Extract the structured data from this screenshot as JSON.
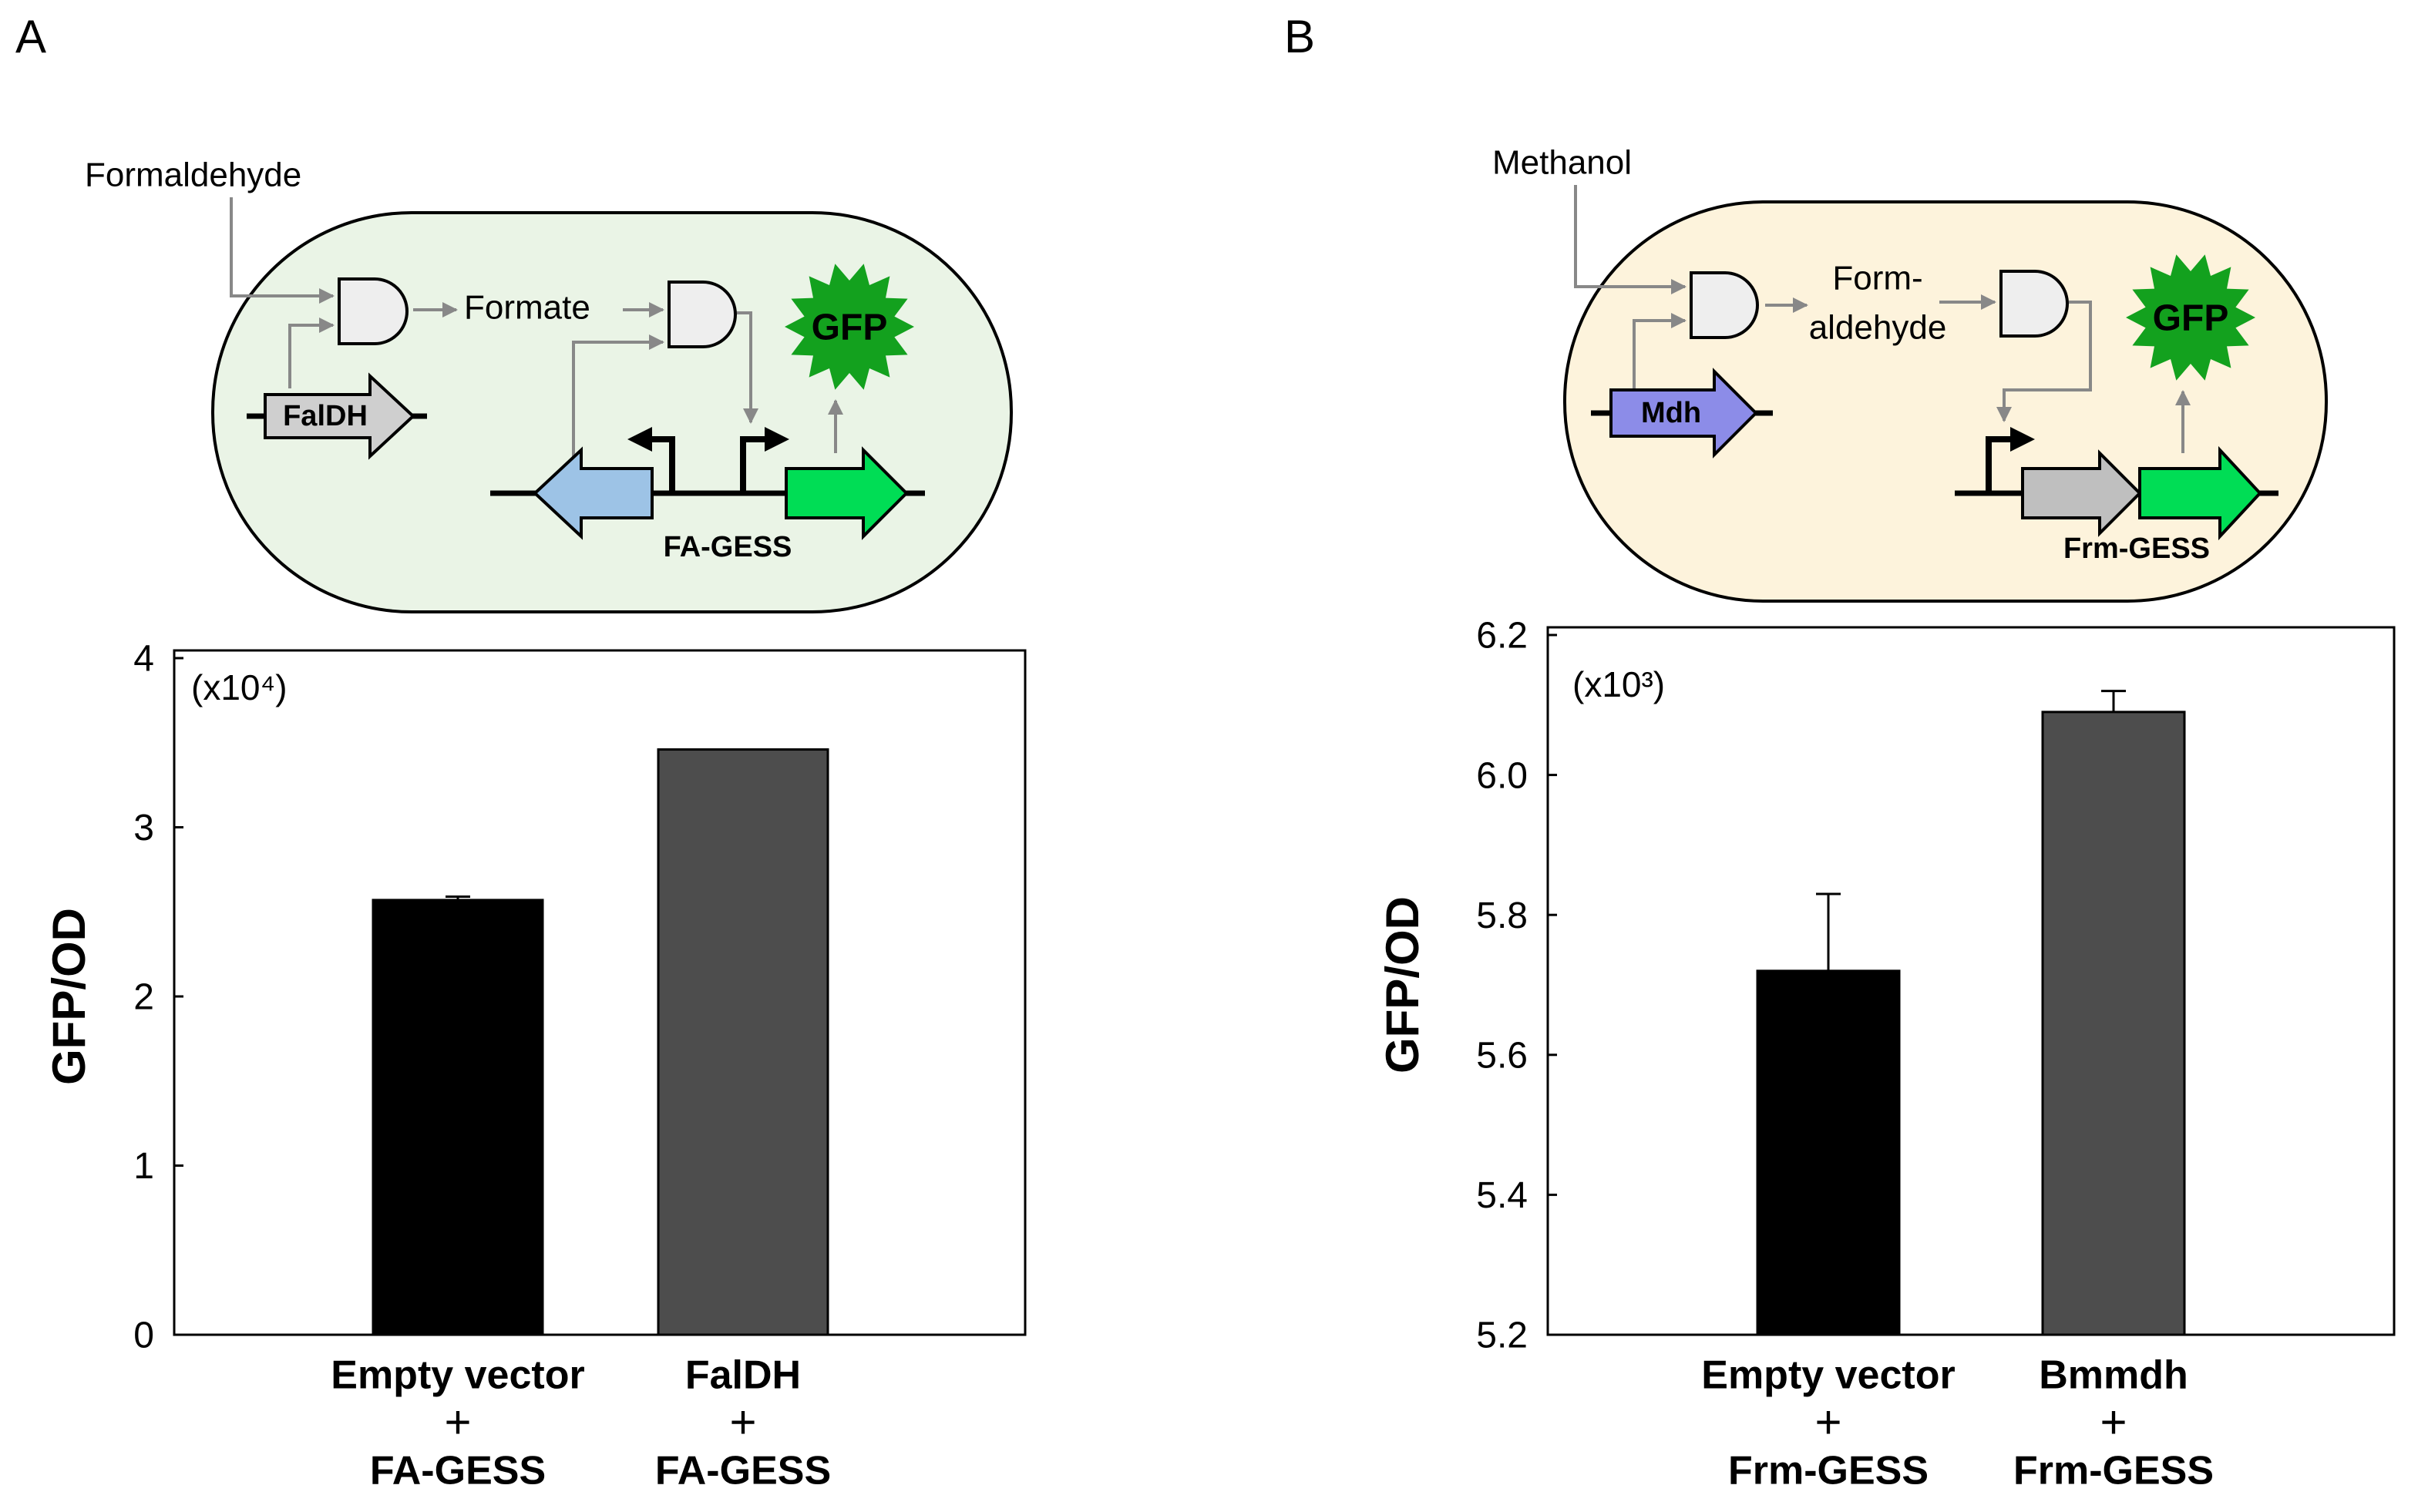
{
  "panels": [
    {
      "label": "A",
      "diagram": {
        "input": "Formaldehyde",
        "intermediate": [
          "Formate"
        ],
        "reporter": "GFP",
        "enzyme_gene": "FalDH",
        "sensor": "FA-GESS"
      }
    },
    {
      "label": "B",
      "diagram": {
        "input": "Methanol",
        "intermediate": [
          "Form-",
          "aldehyde"
        ],
        "reporter": "GFP",
        "enzyme_gene": "Mdh",
        "sensor": "Frm-GESS"
      }
    }
  ],
  "chart_data": [
    {
      "type": "bar",
      "y_label": "GFP/OD",
      "annotation": "(x10⁴)",
      "categories": [
        [
          "Empty vector",
          "+",
          "FA-GESS"
        ],
        [
          "FalDH",
          "+",
          "FA-GESS"
        ]
      ],
      "values": [
        2.57,
        3.46
      ],
      "errors": [
        0.02,
        null
      ],
      "colors": [
        "#000000",
        "#4d4d4d"
      ],
      "ylim": [
        0,
        4
      ],
      "yticks": [
        0,
        1,
        2,
        3,
        4
      ]
    },
    {
      "type": "bar",
      "y_label": "GFP/OD",
      "annotation": "(x10³)",
      "categories": [
        [
          "Empty vector",
          "+",
          "Frm-GESS"
        ],
        [
          "Bmmdh",
          "+",
          "Frm-GESS"
        ]
      ],
      "values": [
        5.72,
        6.09
      ],
      "errors": [
        0.11,
        0.03
      ],
      "colors": [
        "#000000",
        "#4d4d4d"
      ],
      "ylim": [
        5.2,
        6.2
      ],
      "yticks": [
        5.2,
        5.4,
        5.6,
        5.8,
        {
          "value": 6,
          "label": "6.0"
        },
        6.2
      ]
    }
  ]
}
